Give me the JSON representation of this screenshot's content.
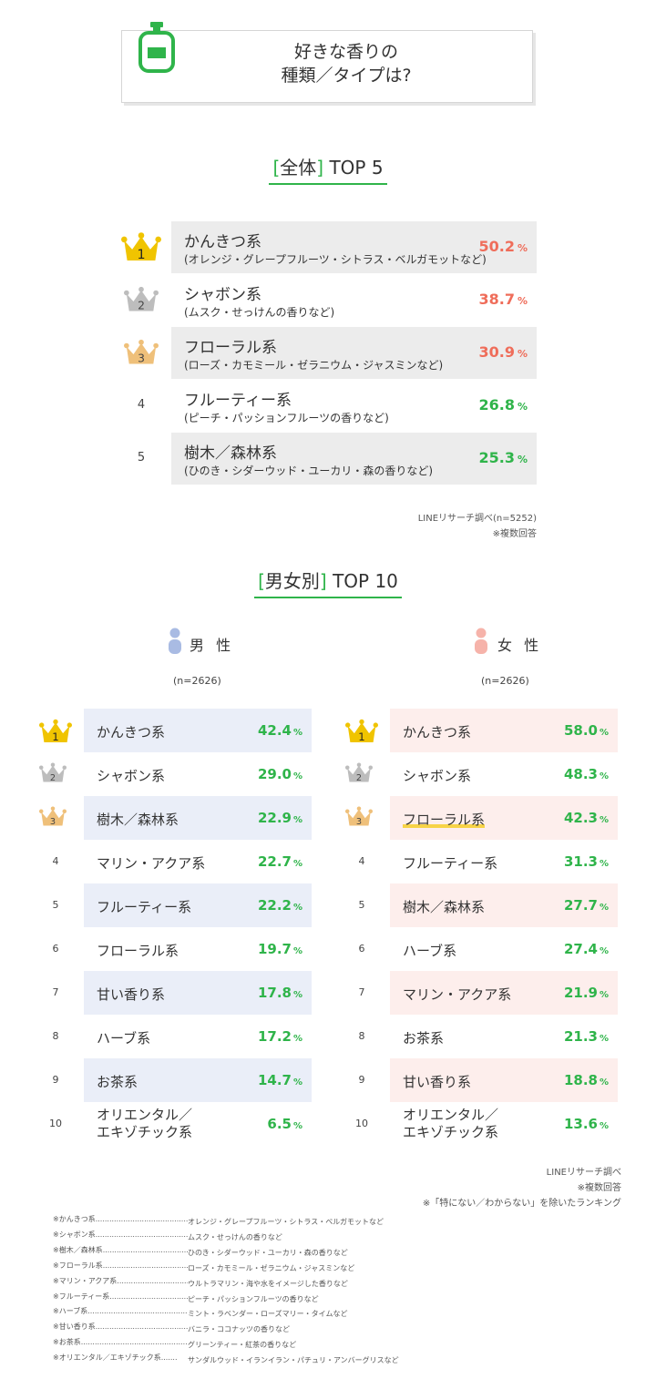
{
  "title": {
    "line1": "好きな香りの",
    "line2": "種類／タイプは?"
  },
  "overall": {
    "heading_bracket_open": "[",
    "heading_label": "全体",
    "heading_bracket_close": "]",
    "heading_rest": "TOP 5",
    "source": "LINEリサーチ調べ(n=5252)",
    "multiple": "※複数回答"
  },
  "gender": {
    "heading_bracket_open": "[",
    "heading_label": "男女別",
    "heading_bracket_close": "]",
    "heading_rest": "TOP 10",
    "male_label": "男 性",
    "female_label": "女 性",
    "male_n": "(n=2626)",
    "female_n": "(n=2626)",
    "source": "LINEリサーチ調べ",
    "multiple": "※複数回答",
    "exclusion": "※「特にない／わからない」を除いたランキング"
  },
  "colors": {
    "accent_green": "#2fb44a",
    "red": "#ef6d5a",
    "gold": "#f0c400",
    "silver": "#bdbdbd",
    "bronze": "#efc07a",
    "male_shade": "#eaeef8",
    "female_shade": "#fdeeec",
    "male_icon": "#a9bbe3",
    "female_icon": "#f6b3aa"
  },
  "icons": {
    "title": "perfume-bottle-icon",
    "rank": "crown-icon",
    "male": "person-icon",
    "female": "person-icon"
  },
  "chart_data": [
    {
      "type": "table",
      "categories": [
        "かんきつ系",
        "シャボン系",
        "フローラル系",
        "フルーティー系",
        "樹木／森林系"
      ],
      "subtitles": [
        "(オレンジ・グレープフルーツ・シトラス・ベルガモットなど)",
        "(ムスク・せっけんの香りなど)",
        "(ローズ・カモミール・ゼラニウム・ジャスミンなど)",
        "(ピーチ・パッションフルーツの香りなど)",
        "(ひのき・シダーウッド・ユーカリ・森の香りなど)"
      ],
      "values": [
        50.2,
        38.7,
        30.9,
        26.8,
        25.3
      ],
      "ranks": [
        "1",
        "2",
        "3",
        "4",
        "5"
      ],
      "unit": "%"
    },
    {
      "type": "table",
      "categories": [
        "かんきつ系",
        "シャボン系",
        "樹木／森林系",
        "マリン・アクア系",
        "フルーティー系",
        "フローラル系",
        "甘い香り系",
        "ハーブ系",
        "お茶系",
        "オリエンタル／エキゾチック系"
      ],
      "name_lines": [
        [
          "かんきつ系"
        ],
        [
          "シャボン系"
        ],
        [
          "樹木／森林系"
        ],
        [
          "マリン・アクア系"
        ],
        [
          "フルーティー系"
        ],
        [
          "フローラル系"
        ],
        [
          "甘い香り系"
        ],
        [
          "ハーブ系"
        ],
        [
          "お茶系"
        ],
        [
          "オリエンタル／",
          "エキゾチック系"
        ]
      ],
      "values": [
        42.4,
        29.0,
        22.9,
        22.7,
        22.2,
        19.7,
        17.8,
        17.2,
        14.7,
        6.5
      ],
      "ranks": [
        "1",
        "2",
        "3",
        "4",
        "5",
        "6",
        "7",
        "8",
        "9",
        "10"
      ],
      "unit": "%"
    },
    {
      "type": "table",
      "categories": [
        "かんきつ系",
        "シャボン系",
        "フローラル系",
        "フルーティー系",
        "樹木／森林系",
        "ハーブ系",
        "マリン・アクア系",
        "お茶系",
        "甘い香り系",
        "オリエンタル／エキゾチック系"
      ],
      "name_lines": [
        [
          "かんきつ系"
        ],
        [
          "シャボン系"
        ],
        [
          "フローラル系"
        ],
        [
          "フルーティー系"
        ],
        [
          "樹木／森林系"
        ],
        [
          "ハーブ系"
        ],
        [
          "マリン・アクア系"
        ],
        [
          "お茶系"
        ],
        [
          "甘い香り系"
        ],
        [
          "オリエンタル／",
          "エキゾチック系"
        ]
      ],
      "values": [
        58.0,
        48.3,
        42.3,
        31.3,
        27.7,
        27.4,
        21.9,
        21.3,
        18.8,
        13.6
      ],
      "ranks": [
        "1",
        "2",
        "3",
        "4",
        "5",
        "6",
        "7",
        "8",
        "9",
        "10"
      ],
      "unit": "%"
    }
  ],
  "footnotes": [
    {
      "label": "※かんきつ系.....................................................",
      "desc": "オレンジ・グレープフルーツ・シトラス・ベルガモットなど"
    },
    {
      "label": "※シャボン系.....................................................",
      "desc": "ムスク・せっけんの香りなど"
    },
    {
      "label": "※樹木／森林系...................................................",
      "desc": "ひのき・シダーウッド・ユーカリ・森の香りなど"
    },
    {
      "label": "※フローラル系...................................................",
      "desc": "ローズ・カモミール・ゼラニウム・ジャスミンなど"
    },
    {
      "label": "※マリン・アクア系...............................................",
      "desc": "ウルトラマリン・海や水をイメージした香りなど"
    },
    {
      "label": "※フルーティー系.................................................",
      "desc": "ピーチ・パッションフルーツの香りなど"
    },
    {
      "label": "※ハーブ系.......................................................",
      "desc": "ミント・ラベンダー・ローズマリー・タイムなど"
    },
    {
      "label": "※甘い香り系.....................................................",
      "desc": "バニラ・ココナッツの香りなど"
    },
    {
      "label": "※お茶系.........................................................",
      "desc": "グリーンティー・紅茶の香りなど"
    },
    {
      "label": "※オリエンタル／エキゾチック系.......",
      "desc": "サンダルウッド・イランイラン・パチュリ・アンバーグリスなど"
    }
  ]
}
